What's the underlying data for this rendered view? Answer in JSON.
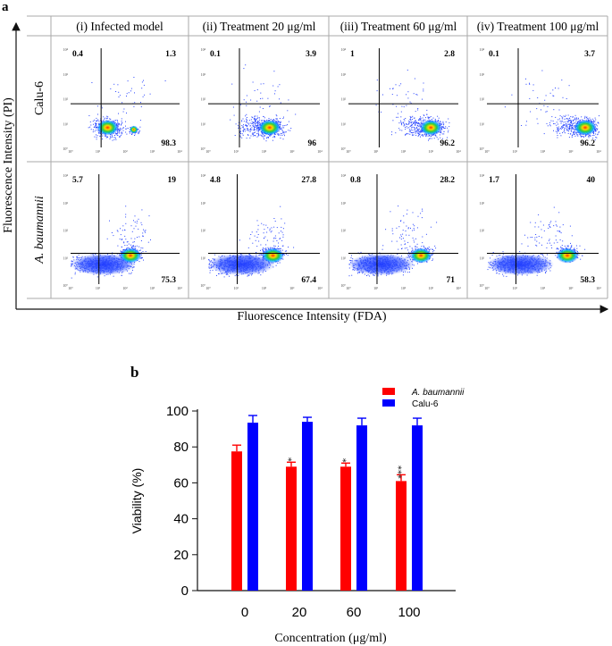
{
  "panel_a": {
    "label": "a",
    "y_axis_label": "Fluorescence Intensity (PI)",
    "x_axis_label": "Fluorescence Intensity (FDA)",
    "columns": [
      "(i) Infected model",
      "(ii) Treatment 20 μg/ml",
      "(iii) Treatment 60 μg/ml",
      "(iv) Treatment 100 μg/ml"
    ],
    "rows": [
      {
        "label": "Calu-6",
        "italic": false
      },
      {
        "label": "A. baumannii",
        "italic": true
      }
    ],
    "tick_labels": {
      "y": [
        "10⁴",
        "10³",
        "10²",
        "10¹",
        "10⁰"
      ],
      "x": [
        "10⁰",
        "10¹",
        "10²",
        "10³",
        "10⁴"
      ]
    },
    "quadrants": [
      [
        {
          "ul": "0.4",
          "ur": "1.3",
          "lr": "98.3"
        },
        {
          "ul": "0.1",
          "ur": "3.9",
          "lr": "96"
        },
        {
          "ul": "1",
          "ur": "2.8",
          "lr": "96.2"
        },
        {
          "ul": "0.1",
          "ur": "3.7",
          "lr": "96.2"
        }
      ],
      [
        {
          "ul": "5.7",
          "ur": "19",
          "lr": "75.3"
        },
        {
          "ul": "4.8",
          "ur": "27.8",
          "lr": "67.4"
        },
        {
          "ul": "0.8",
          "ur": "28.2",
          "lr": "71"
        },
        {
          "ul": "1.7",
          "ur": "40",
          "lr": "58.3"
        }
      ]
    ]
  },
  "chart_data": {
    "type": "bar",
    "label": "b",
    "title": "",
    "categories": [
      "0",
      "20",
      "60",
      "100"
    ],
    "series": [
      {
        "name": "A. baumannii",
        "color": "#ff0000",
        "italic": true,
        "values": [
          77.5,
          69,
          69,
          61
        ],
        "errors": [
          3.5,
          2.5,
          2,
          3.5
        ],
        "significance": [
          "",
          "*",
          "*",
          "***"
        ]
      },
      {
        "name": "Calu-6",
        "color": "#0000ff",
        "italic": false,
        "values": [
          93.5,
          94,
          92,
          92
        ],
        "errors": [
          4,
          2.5,
          4,
          4
        ],
        "significance": [
          "",
          "",
          "",
          ""
        ]
      }
    ],
    "xlabel": "Concentration (μg/ml)",
    "ylabel": "Viability (%)",
    "ylim": [
      0,
      100
    ],
    "yticks": [
      "0",
      "20",
      "40",
      "60",
      "80",
      "100"
    ],
    "legend_position": "top-right"
  }
}
